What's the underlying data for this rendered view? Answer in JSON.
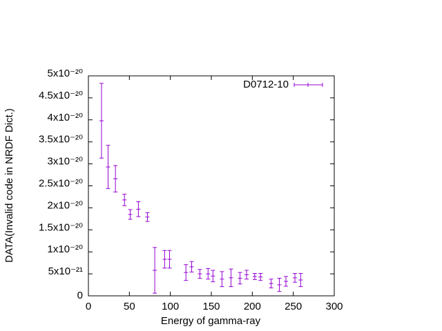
{
  "chart_data": {
    "type": "errorbar",
    "xlabel": "Energy of gamma-ray",
    "ylabel": "DATA(Invalid code in NRDF Dict.)",
    "xlim": [
      0,
      300
    ],
    "xticks": [
      0,
      50,
      100,
      150,
      200,
      250,
      300
    ],
    "ylim": [
      0,
      5e-20
    ],
    "yticks": [
      0,
      {
        "value": 5e-21,
        "label": "5x10⁻²¹"
      },
      {
        "value": 1e-20,
        "label": "1x10⁻²⁰"
      },
      {
        "value": 1.5e-20,
        "label": "1.5x10⁻²⁰"
      },
      {
        "value": 2e-20,
        "label": "2x10⁻²⁰"
      },
      {
        "value": 2.5e-20,
        "label": "2.5x10⁻²⁰"
      },
      {
        "value": 3e-20,
        "label": "3x10⁻²⁰"
      },
      {
        "value": 3.5e-20,
        "label": "3.5x10⁻²⁰"
      },
      {
        "value": 4e-20,
        "label": "4x10⁻²⁰"
      },
      {
        "value": 4.5e-20,
        "label": "4.5x10⁻²⁰"
      },
      {
        "value": 5e-20,
        "label": "5x10⁻²⁰"
      }
    ],
    "legend": "top-right",
    "series": [
      {
        "name": "D0712-10",
        "color": "#9400d3",
        "x": [
          16,
          24,
          33,
          44,
          51,
          61,
          72,
          81,
          93,
          99,
          119,
          126,
          136,
          146,
          152,
          163,
          174,
          185,
          193,
          203,
          210,
          223,
          233,
          241,
          252,
          259
        ],
        "values": [
          3.98e-20,
          2.93e-20,
          2.66e-20,
          2.18e-20,
          1.85e-20,
          1.97e-20,
          1.79e-20,
          5.8e-21,
          8.3e-21,
          8.3e-21,
          5.3e-21,
          6.6e-21,
          5e-21,
          5e-21,
          4.5e-21,
          3.8e-21,
          4.1e-21,
          4e-21,
          4.8e-21,
          4.4e-21,
          4.3e-21,
          2.8e-21,
          2.5e-21,
          3.3e-21,
          4.1e-21,
          3.6e-21
        ],
        "errors": [
          8.5e-21,
          4.9e-21,
          3e-21,
          1.3e-21,
          1.1e-21,
          1.7e-21,
          1e-21,
          5.2e-21,
          2e-21,
          2e-21,
          1.8e-21,
          1.2e-21,
          1e-21,
          1.2e-21,
          1.3e-21,
          1.7e-21,
          2e-21,
          1.3e-21,
          1e-21,
          7e-22,
          8e-22,
          1e-21,
          1.5e-21,
          1.1e-21,
          1e-21,
          1.5e-21
        ]
      }
    ]
  }
}
